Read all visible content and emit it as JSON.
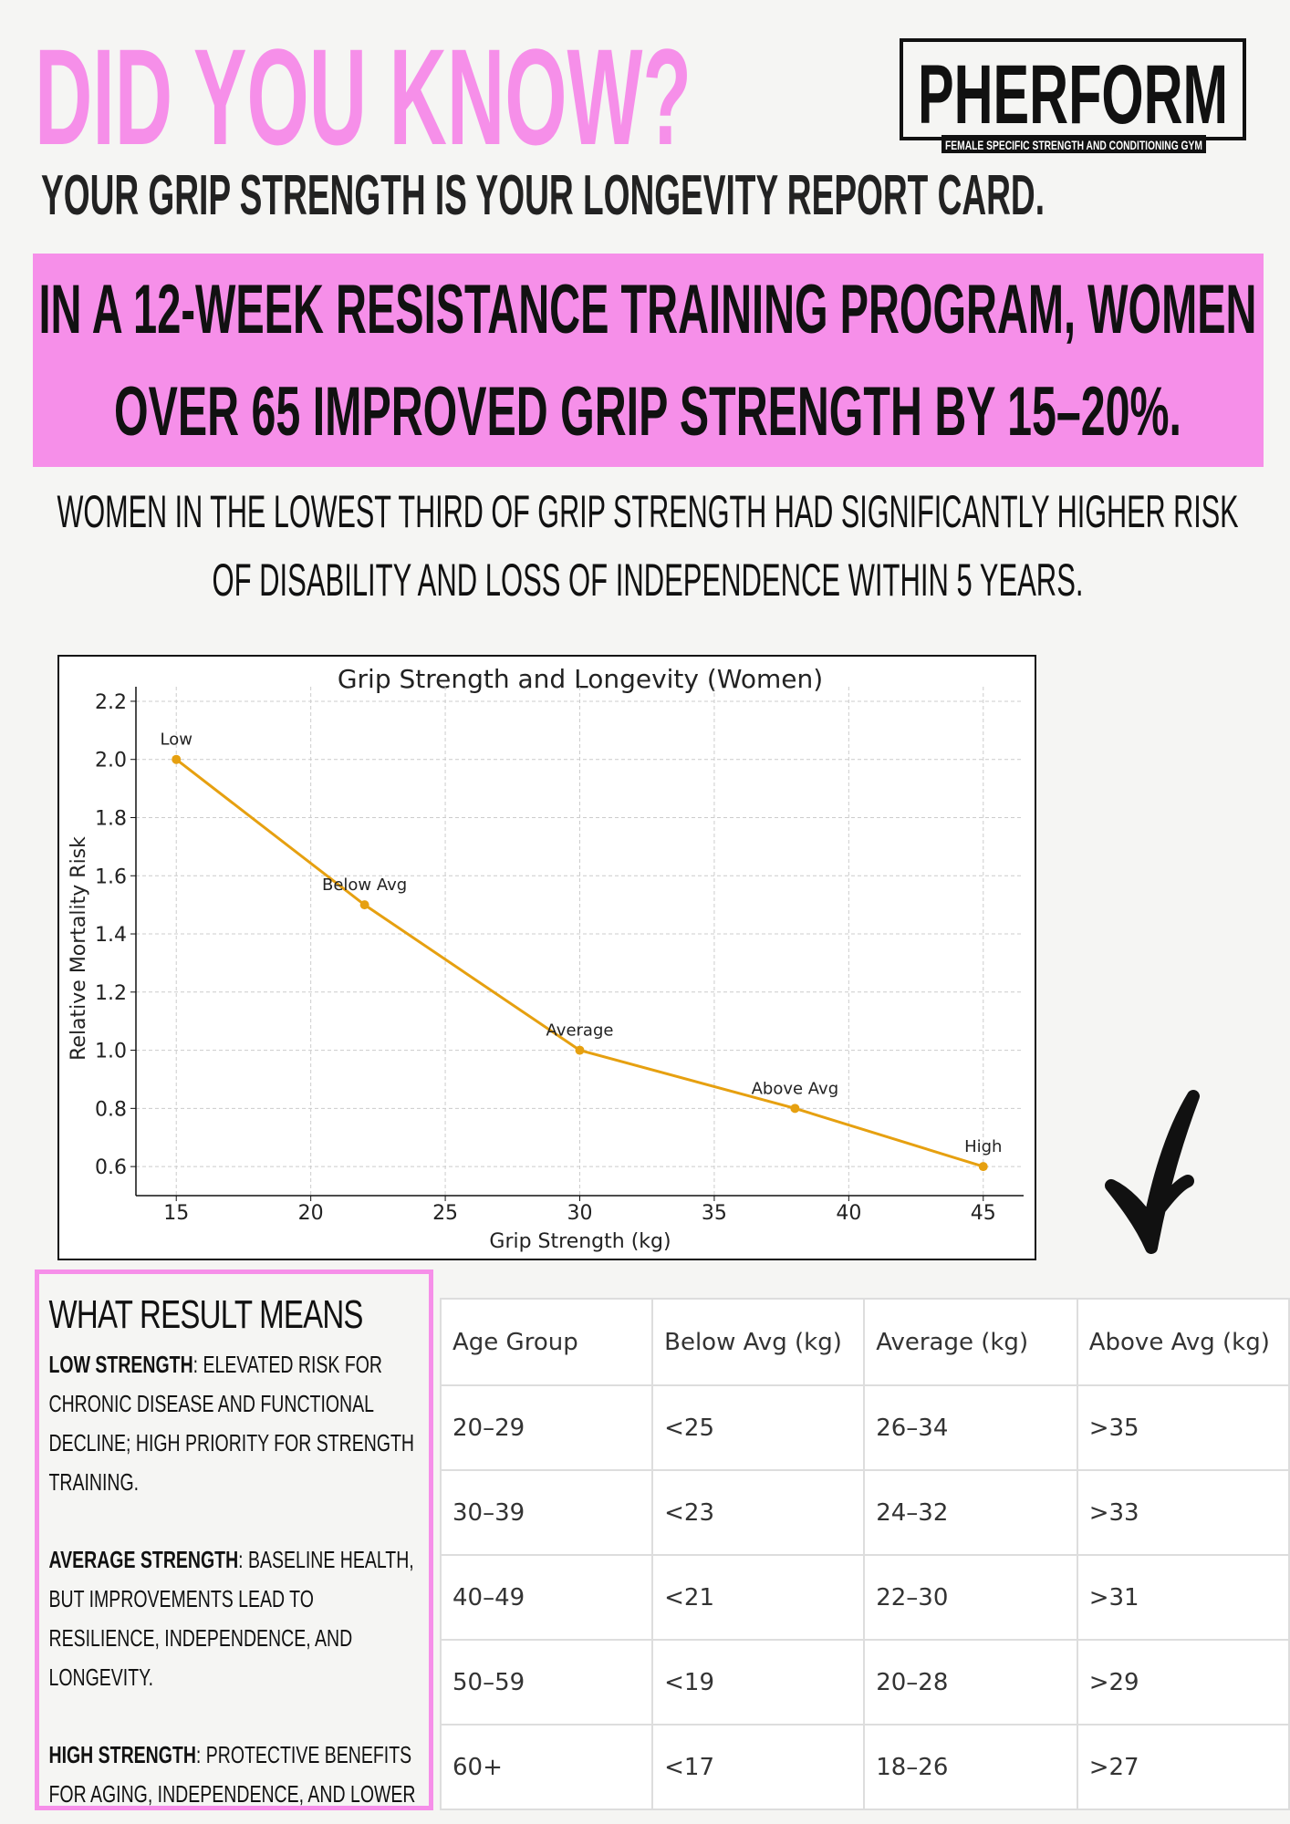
{
  "header": {
    "title": "DID YOU KNOW?",
    "subtitle": "YOUR GRIP STRENGTH IS YOUR LONGEVITY REPORT CARD."
  },
  "logo": {
    "name": "PHERFORM",
    "tagline": "FEMALE SPECIFIC STRENGTH AND CONDITIONING GYM"
  },
  "callout": {
    "lines": [
      "IN A 12-WEEK RESISTANCE TRAINING PROGRAM, WOMEN",
      "OVER 65 IMPROVED GRIP STRENGTH BY 15–20%."
    ]
  },
  "finding": {
    "lines": [
      "WOMEN IN THE LOWEST THIRD OF GRIP STRENGTH HAD SIGNIFICANTLY HIGHER RISK",
      "OF DISABILITY AND LOSS OF INDEPENDENCE WITHIN 5 YEARS."
    ]
  },
  "chart_data": {
    "type": "line",
    "title": "Grip Strength and Longevity (Women)",
    "x_label": "Grip Strength (kg)",
    "y_label": "Relative Mortality Risk",
    "x": [
      15,
      22,
      30,
      38,
      45
    ],
    "series": [
      {
        "name": "Relative Mortality Risk",
        "color": "#e6a010",
        "values": [
          2.0,
          1.5,
          1.0,
          0.8,
          0.6
        ]
      }
    ],
    "point_labels": [
      "Low",
      "Below Avg",
      "Average",
      "Above Avg",
      "High"
    ],
    "xlim": [
      13.5,
      46.5
    ],
    "xticks": [
      15,
      20,
      25,
      30,
      35,
      40,
      45
    ],
    "ylim": [
      0.5,
      2.25
    ],
    "yticks": [
      {
        "value": 0.6,
        "label": "0.6"
      },
      {
        "value": 0.8,
        "label": "0.8"
      },
      {
        "value": 1.0,
        "label": "1.0"
      },
      {
        "value": 1.2,
        "label": "1.2"
      },
      {
        "value": 1.4,
        "label": "1.4"
      },
      {
        "value": 1.6,
        "label": "1.6"
      },
      {
        "value": 1.8,
        "label": "1.8"
      },
      {
        "value": 2.0,
        "label": "2.0"
      },
      {
        "value": 2.2,
        "label": "2.2"
      }
    ],
    "grid": true
  },
  "results": {
    "title": "WHAT RESULT MEANS",
    "items": [
      {
        "lead": "LOW STRENGTH",
        "text": ": ELEVATED RISK FOR CHRONIC DISEASE AND FUNCTIONAL DECLINE; HIGH PRIORITY FOR STRENGTH TRAINING."
      },
      {
        "lead": "AVERAGE STRENGTH",
        "text": ": BASELINE HEALTH, BUT IMPROVEMENTS LEAD TO RESILIENCE, INDEPENDENCE, AND LONGEVITY."
      },
      {
        "lead": "HIGH STRENGTH",
        "text": ": PROTECTIVE BENEFITS FOR AGING, INDEPENDENCE, AND LOWER LONG-TERM HEALTH RISKS."
      }
    ]
  },
  "table": {
    "header": [
      "Age Group",
      "Below Avg (kg)",
      "Average (kg)",
      "Above Avg (kg)"
    ],
    "rows": [
      [
        "20–29",
        "<25",
        "26–34",
        ">35"
      ],
      [
        "30–39",
        "<23",
        "24–32",
        ">33"
      ],
      [
        "40–49",
        "<21",
        "22–30",
        ">31"
      ],
      [
        "50–59",
        "<19",
        "20–28",
        ">29"
      ],
      [
        "60+",
        "<17",
        "18–26",
        ">27"
      ]
    ]
  }
}
